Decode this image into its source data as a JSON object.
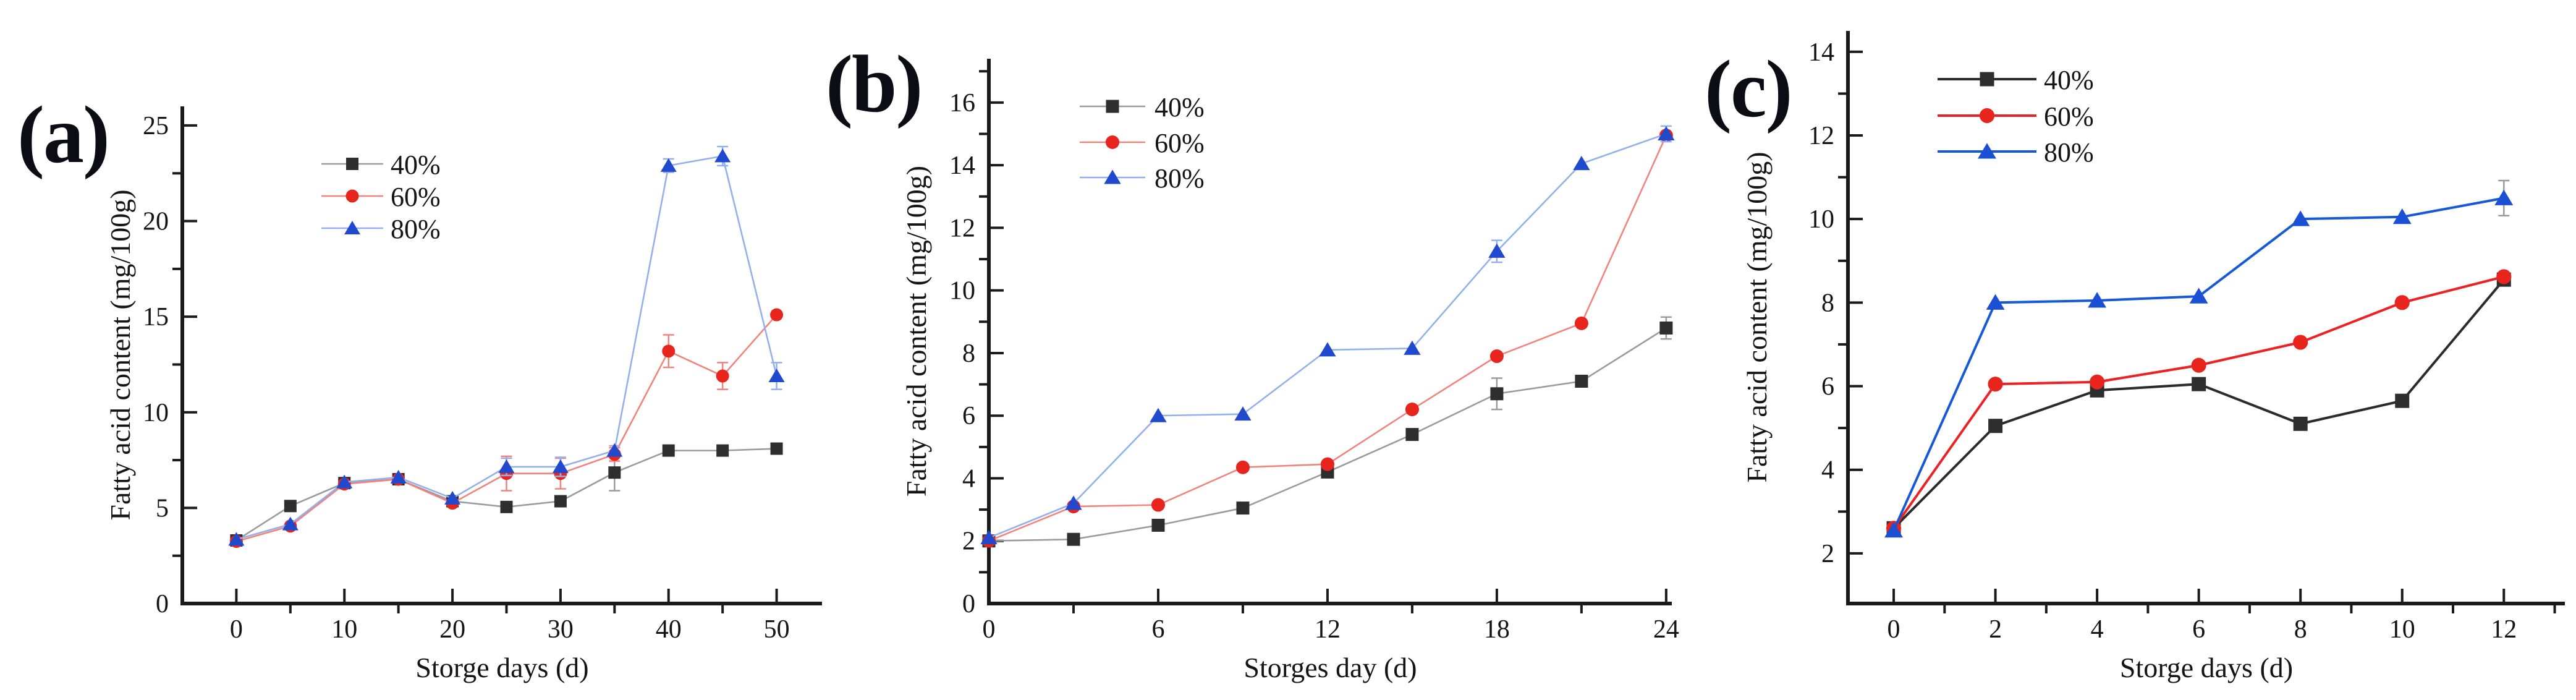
{
  "styles": {
    "background": "#ffffff",
    "axis_color": "#1a1a1a",
    "black_marker": "#2e2e2e",
    "red_marker": "#e7251d",
    "blue_marker": "#2149cd"
  },
  "chart_data": [
    {
      "id": "a",
      "panel_label": "(a)",
      "type": "line",
      "title": "",
      "xlabel": "Storge days (d)",
      "ylabel": "Fatty acid content (mg/100g)",
      "x": [
        0,
        5,
        10,
        15,
        20,
        25,
        30,
        35,
        40,
        45,
        50
      ],
      "xlim": [
        -5,
        54.2
      ],
      "ylim": [
        0,
        26
      ],
      "x_ticks_major": [
        0,
        10,
        20,
        30,
        40,
        50
      ],
      "x_ticks_minor": [
        5,
        15,
        25,
        35,
        45
      ],
      "y_ticks_major": [
        0,
        5,
        10,
        15,
        20,
        25
      ],
      "y_ticks_minor": [
        2.5,
        7.5,
        12.5,
        17.5,
        22.5
      ],
      "grid": false,
      "legend_position": "upper-left-inside",
      "series": [
        {
          "name": "40%",
          "marker": "square",
          "marker_color": "#2e2e2e",
          "line_color": "#9b9b9b",
          "values": [
            3.3,
            5.1,
            6.3,
            6.5,
            5.35,
            5.05,
            5.35,
            6.85,
            8.0,
            8.0,
            8.1
          ],
          "errors": [
            0,
            0,
            0,
            0,
            0,
            0,
            0,
            0.95,
            0,
            0,
            0
          ]
        },
        {
          "name": "60%",
          "marker": "circle",
          "marker_color": "#e7251d",
          "line_color": "#f2837c",
          "values": [
            3.25,
            4.05,
            6.25,
            6.5,
            5.25,
            6.8,
            6.8,
            7.8,
            13.2,
            11.9,
            15.1
          ],
          "errors": [
            0,
            0,
            0,
            0,
            0,
            0.9,
            0.8,
            0.35,
            0.85,
            0.7,
            0
          ]
        },
        {
          "name": "80%",
          "marker": "triangle",
          "marker_color": "#2149cd",
          "line_color": "#93b0ec",
          "values": [
            3.35,
            4.15,
            6.35,
            6.6,
            5.5,
            7.15,
            7.15,
            8.0,
            22.9,
            23.4,
            11.9
          ],
          "errors": [
            0,
            0,
            0,
            0,
            0,
            0.45,
            0.5,
            0.25,
            0.35,
            0.5,
            0.7
          ]
        }
      ]
    },
    {
      "id": "b",
      "panel_label": "(b)",
      "type": "line",
      "title": "",
      "xlabel": "Storges day (d)",
      "ylabel": "Fatty acid content (mg/100g)",
      "x": [
        0,
        3,
        6,
        9,
        12,
        15,
        18,
        21,
        24
      ],
      "xlim": [
        0,
        24.2
      ],
      "ylim": [
        0,
        17.4
      ],
      "x_ticks_major": [
        0,
        6,
        12,
        18,
        24
      ],
      "x_ticks_minor": [
        3,
        9,
        15,
        21
      ],
      "y_ticks_major": [
        0,
        2,
        4,
        6,
        8,
        10,
        12,
        14,
        16
      ],
      "y_ticks_minor": [
        1,
        3,
        5,
        7,
        9,
        11,
        13,
        15,
        17
      ],
      "grid": false,
      "legend_position": "upper-left-inside",
      "series": [
        {
          "name": "40%",
          "marker": "square",
          "marker_color": "#2e2e2e",
          "line_color": "#9b9b9b",
          "values": [
            2.0,
            2.05,
            2.5,
            3.05,
            4.2,
            5.4,
            6.7,
            7.1,
            8.8
          ],
          "errors": [
            0,
            0,
            0,
            0,
            0,
            0,
            0.5,
            0,
            0.35
          ]
        },
        {
          "name": "60%",
          "marker": "circle",
          "marker_color": "#e7251d",
          "line_color": "#f2837c",
          "values": [
            2.0,
            3.1,
            3.15,
            4.35,
            4.45,
            6.2,
            7.9,
            8.95,
            14.95
          ],
          "errors": [
            0,
            0,
            0,
            0,
            0,
            0,
            0,
            0,
            0
          ]
        },
        {
          "name": "80%",
          "marker": "triangle",
          "marker_color": "#2149cd",
          "line_color": "#93b0ec",
          "values": [
            2.1,
            3.2,
            6.0,
            6.05,
            8.1,
            8.15,
            11.25,
            14.05,
            15.0
          ],
          "errors": [
            0,
            0,
            0,
            0,
            0,
            0,
            0.35,
            0,
            0.25
          ]
        }
      ]
    },
    {
      "id": "c",
      "panel_label": "(c)",
      "type": "line",
      "title": "",
      "xlabel": "Storge days (d)",
      "ylabel": "Fatty acid content (mg/100g)",
      "x": [
        0,
        2,
        4,
        6,
        8,
        10,
        12
      ],
      "xlim": [
        -0.9,
        13.2
      ],
      "ylim": [
        0.8,
        14.5
      ],
      "x_ticks_major": [
        0,
        2,
        4,
        6,
        8,
        10,
        12
      ],
      "x_ticks_minor": [
        1,
        3,
        5,
        7,
        9,
        11,
        13
      ],
      "y_ticks_major": [
        2,
        4,
        6,
        8,
        10,
        12,
        14
      ],
      "y_ticks_minor": [
        3,
        5,
        7,
        9,
        11,
        13
      ],
      "grid": false,
      "legend_position": "upper-left-inside",
      "series": [
        {
          "name": "40%",
          "marker": "square",
          "marker_color": "#2e2e2e",
          "line_color": "#2b2b2b",
          "values": [
            2.6,
            5.05,
            5.9,
            6.05,
            5.1,
            5.65,
            8.55
          ],
          "errors": [
            0,
            0,
            0,
            0,
            0,
            0,
            0
          ]
        },
        {
          "name": "60%",
          "marker": "circle",
          "marker_color": "#e7251d",
          "line_color": "#ed2024",
          "values": [
            2.6,
            6.05,
            6.1,
            6.5,
            7.05,
            8.0,
            8.62
          ],
          "errors": [
            0,
            0,
            0,
            0,
            0,
            0,
            0
          ]
        },
        {
          "name": "80%",
          "marker": "triangle",
          "marker_color": "#1b50d4",
          "line_color": "#1659d8",
          "values": [
            2.55,
            8.0,
            8.05,
            8.15,
            10.0,
            10.05,
            10.5
          ],
          "errors": [
            0,
            0,
            0,
            0,
            0,
            0,
            0.42
          ],
          "error_color": "#9a9a9a"
        }
      ]
    }
  ]
}
